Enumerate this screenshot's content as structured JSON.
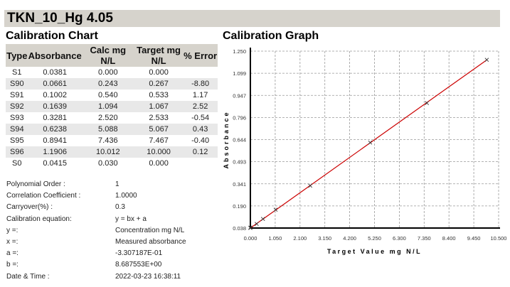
{
  "title": "TKN_10_Hg 4.05",
  "chart_heading": "Calibration Chart",
  "graph_heading": "Calibration Graph",
  "table": {
    "headers": [
      "Type",
      "Absorbance",
      "Calc mg N/L",
      "Target mg N/L",
      "% Error"
    ],
    "rows": [
      [
        "S1",
        "0.0381",
        "0.000",
        "0.000",
        ""
      ],
      [
        "S90",
        "0.0661",
        "0.243",
        "0.267",
        "-8.80"
      ],
      [
        "S91",
        "0.1002",
        "0.540",
        "0.533",
        "1.17"
      ],
      [
        "S92",
        "0.1639",
        "1.094",
        "1.067",
        "2.52"
      ],
      [
        "S93",
        "0.3281",
        "2.520",
        "2.533",
        "-0.54"
      ],
      [
        "S94",
        "0.6238",
        "5.088",
        "5.067",
        "0.43"
      ],
      [
        "S95",
        "0.8941",
        "7.436",
        "7.467",
        "-0.40"
      ],
      [
        "S96",
        "1.1906",
        "10.012",
        "10.000",
        "0.12"
      ],
      [
        "S0",
        "0.0415",
        "0.030",
        "0.000",
        ""
      ]
    ]
  },
  "info": [
    [
      "Polynomial Order :",
      "1"
    ],
    [
      "Correlation Coefficient :",
      "1.0000"
    ],
    [
      "Carryover(%) :",
      "0.3"
    ],
    [
      "Calibration equation:",
      "y = bx + a"
    ],
    [
      "y =:",
      "Concentration mg N/L"
    ],
    [
      "x =:",
      "Measured absorbance"
    ],
    [
      "a =:",
      "-3.307187E-01"
    ],
    [
      "b =:",
      "8.687553E+00"
    ],
    [
      "Date & Time :",
      "2022-03-23 16:38:11"
    ]
  ],
  "chart_data": {
    "type": "scatter",
    "title": "Calibration Graph",
    "xlabel": "Target Value mg N/L",
    "ylabel": "Absorbance",
    "xlim": [
      0,
      10.5
    ],
    "ylim": [
      0.038,
      1.25
    ],
    "xticks": [
      "0.000",
      "1.050",
      "2.100",
      "3.150",
      "4.200",
      "5.250",
      "6.300",
      "7.350",
      "8.400",
      "9.450",
      "10.500"
    ],
    "yticks": [
      "0.038",
      "0.190",
      "0.341",
      "0.493",
      "0.644",
      "0.796",
      "0.947",
      "1.099",
      "1.250"
    ],
    "grid": true,
    "points": [
      [
        0,
        0.0381
      ],
      [
        0.267,
        0.0661
      ],
      [
        0.533,
        0.1002
      ],
      [
        1.067,
        0.1639
      ],
      [
        2.533,
        0.3281
      ],
      [
        5.067,
        0.6238
      ],
      [
        7.467,
        0.8941
      ],
      [
        10.0,
        1.1906
      ],
      [
        0,
        0.0415
      ]
    ],
    "fit_line": [
      [
        0,
        0.0381
      ],
      [
        10.0,
        1.19
      ]
    ],
    "line_color": "#cc0000"
  }
}
